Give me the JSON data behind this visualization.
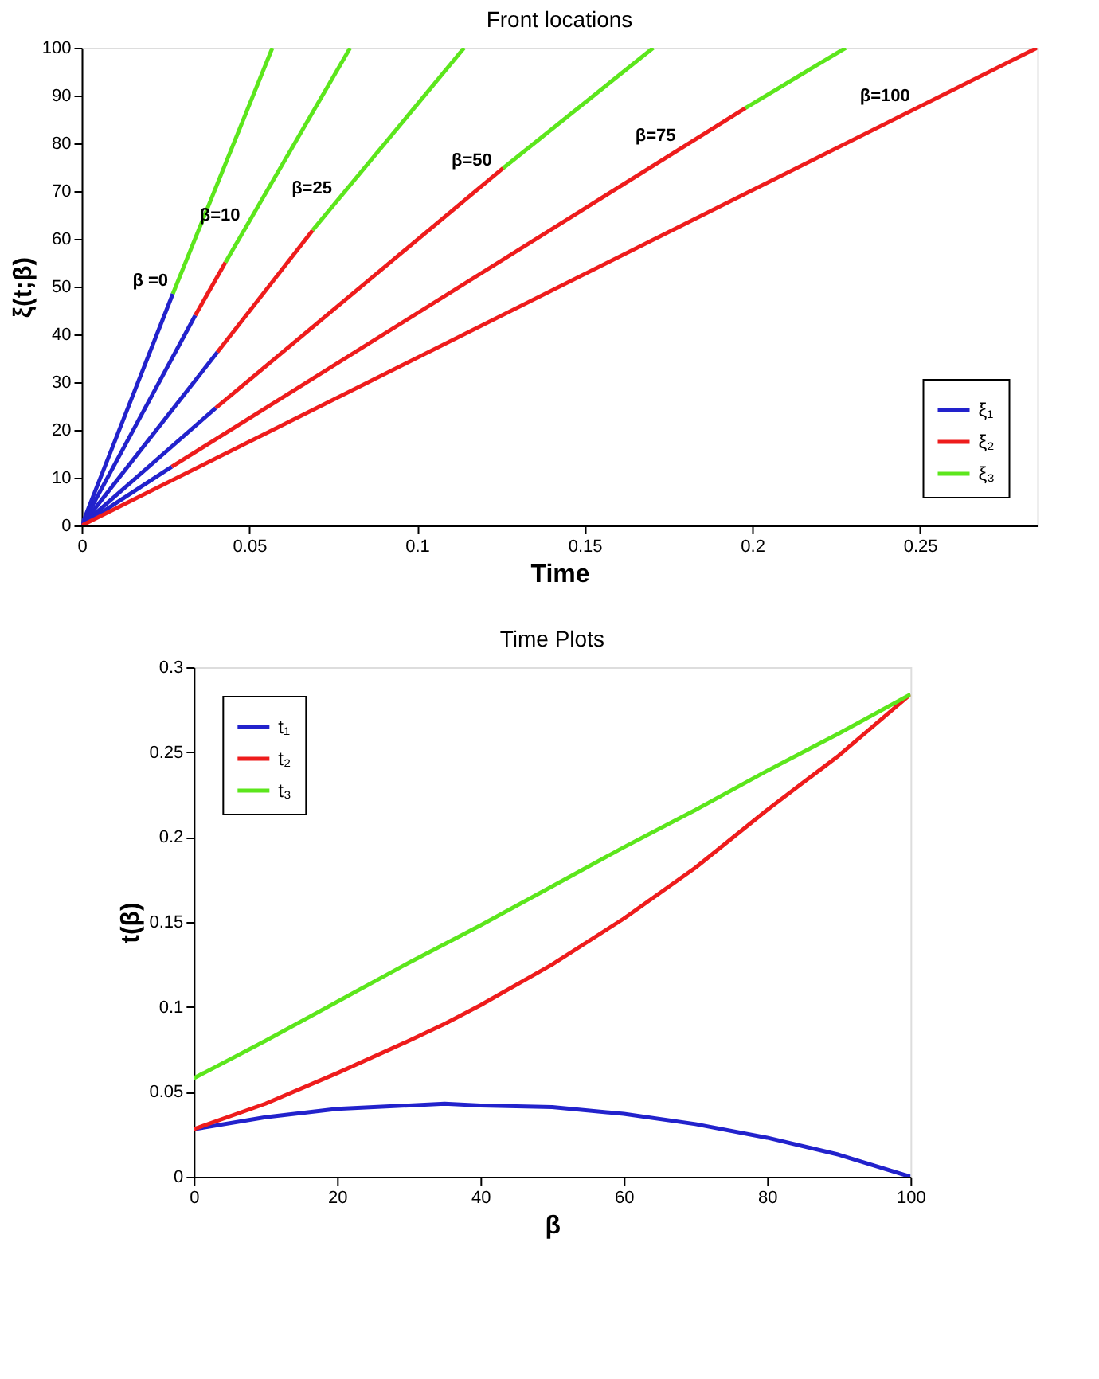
{
  "chart_data": [
    {
      "type": "line",
      "title": "Front locations",
      "xlabel": "Time",
      "ylabel": "ξ(t;β)",
      "xlim": [
        0,
        0.285
      ],
      "ylim": [
        0,
        100
      ],
      "xticks": [
        0,
        0.05,
        0.1,
        0.15,
        0.2,
        0.25
      ],
      "yticks": [
        0,
        10,
        20,
        30,
        40,
        50,
        60,
        70,
        80,
        90,
        100
      ],
      "grid": false,
      "legend": "bottom right",
      "marker": "none",
      "line_style": "solid",
      "series": [
        {
          "name": "ξ₁",
          "color": "#2222cc",
          "x": [
            0,
            0.0272,
            null,
            0,
            0.0339,
            null,
            0,
            0.0405,
            null,
            0,
            0.04,
            null,
            0,
            0.0269
          ],
          "values": [
            0,
            48.5,
            null,
            0,
            44,
            null,
            0,
            36.3,
            null,
            0,
            24.6,
            null,
            0,
            12.3
          ]
        },
        {
          "name": "ξ₂",
          "color": "#ee1c1c",
          "x": [
            0.0339,
            0.0429,
            null,
            0.0405,
            0.0689,
            null,
            0.04,
            0.1257,
            null,
            0.0269,
            0.198,
            null,
            0,
            0.285
          ],
          "values": [
            44,
            55.1,
            null,
            36.3,
            61.8,
            null,
            24.6,
            74.8,
            null,
            12.3,
            87.4,
            null,
            0,
            100
          ]
        },
        {
          "name": "ξ₃",
          "color": "#5ce61c",
          "x": [
            0.0272,
            0.0569,
            null,
            0.0429,
            0.0801,
            null,
            0.0689,
            0.1141,
            null,
            0.1257,
            0.1705,
            null,
            0.198,
            0.2279
          ],
          "values": [
            48.5,
            100,
            null,
            55.1,
            100,
            null,
            61.8,
            100,
            null,
            74.8,
            100,
            null,
            87.4,
            100
          ]
        }
      ],
      "annotations": [
        {
          "text": "β =0",
          "x": 0.0272,
          "y": 48.5
        },
        {
          "text": "β=10",
          "x": 0.0487,
          "y": 62.1
        },
        {
          "text": "β=25",
          "x": 0.0761,
          "y": 67.9
        },
        {
          "text": "β=50",
          "x": 0.1238,
          "y": 73.7
        },
        {
          "text": "β=75",
          "x": 0.1786,
          "y": 78.9
        },
        {
          "text": "β=100",
          "x": 0.2485,
          "y": 87.2
        }
      ]
    },
    {
      "type": "line",
      "title": "Time Plots",
      "xlabel": "β",
      "ylabel": "t(β)",
      "xlim": [
        0,
        100
      ],
      "ylim": [
        0,
        0.3
      ],
      "xticks": [
        0,
        20,
        40,
        60,
        80,
        100
      ],
      "yticks": [
        0,
        0.05,
        0.1,
        0.15,
        0.2,
        0.25,
        0.3
      ],
      "grid": false,
      "legend": "top left",
      "marker": "none",
      "line_style": "solid",
      "x": [
        0,
        10,
        20,
        30,
        35,
        40,
        50,
        60,
        70,
        80,
        90,
        100
      ],
      "series": [
        {
          "name": "t₁",
          "color": "#2222cc",
          "values": [
            0.028,
            0.035,
            0.04,
            0.042,
            0.043,
            0.042,
            0.041,
            0.037,
            0.031,
            0.023,
            0.013,
            0
          ]
        },
        {
          "name": "t₂",
          "color": "#ee1c1c",
          "values": [
            0.028,
            0.043,
            0.061,
            0.08,
            0.09,
            0.101,
            0.125,
            0.152,
            0.182,
            0.216,
            0.248,
            0.284
          ]
        },
        {
          "name": "t₃",
          "color": "#5ce61c",
          "values": [
            0.058,
            0.08,
            0.103,
            0.126,
            0.137,
            0.148,
            0.171,
            0.194,
            0.216,
            0.239,
            0.261,
            0.284
          ]
        }
      ]
    }
  ]
}
